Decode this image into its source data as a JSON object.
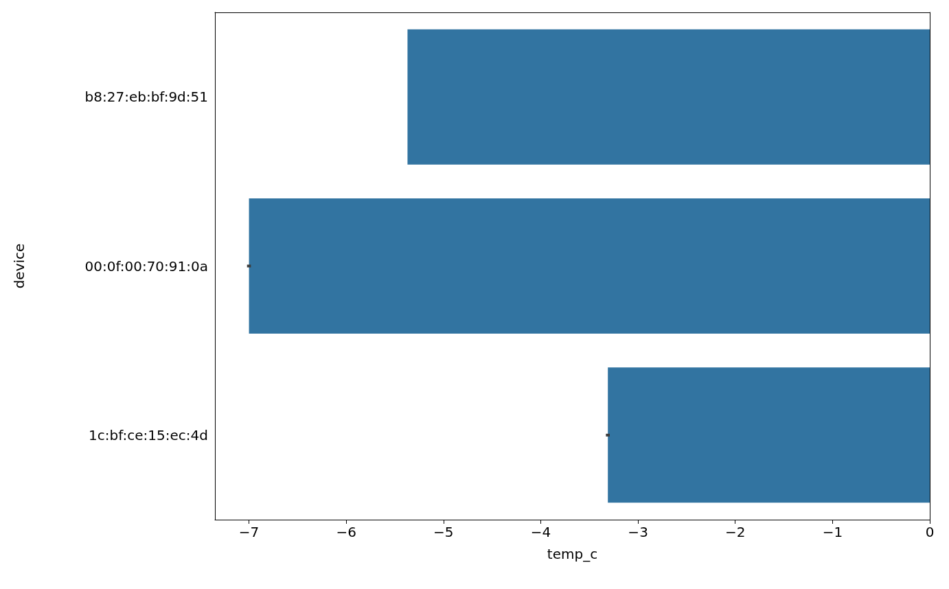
{
  "chart_data": {
    "type": "bar",
    "orientation": "horizontal",
    "xlabel": "temp_c",
    "ylabel": "device",
    "categories": [
      "b8:27:eb:bf:9d:51",
      "00:0f:00:70:91:0a",
      "1c:bf:ce:15:ec:4d"
    ],
    "values": [
      -5.37,
      -7.0,
      -3.31
    ],
    "errors": [
      null,
      0.02,
      0.02
    ],
    "color": "#3274a1",
    "xlim": [
      -7.35,
      0
    ],
    "xticks": [
      -7,
      -6,
      -5,
      -4,
      -3,
      -2,
      -1,
      0
    ],
    "grid": false
  }
}
